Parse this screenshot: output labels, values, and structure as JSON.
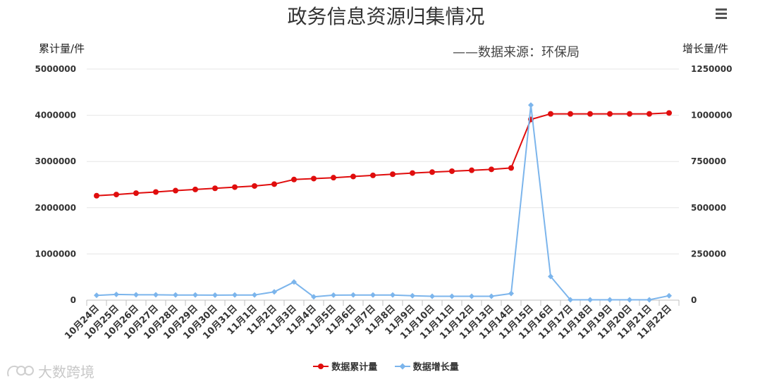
{
  "chart_data": {
    "type": "line",
    "title": "政务信息资源归集情况",
    "subtitle": "——数据来源：环保局",
    "ylabel_left": "累计量/件",
    "ylabel_right": "增长量/件",
    "categories": [
      "10月24日",
      "10月25日",
      "10月26日",
      "10月27日",
      "10月28日",
      "10月29日",
      "10月30日",
      "10月31日",
      "11月1日",
      "11月2日",
      "11月3日",
      "11月4日",
      "11月5日",
      "11月6日",
      "11月7日",
      "11月8日",
      "11月9日",
      "11月10日",
      "11月11日",
      "11月12日",
      "11月13日",
      "11月14日",
      "11月15日",
      "11月16日",
      "11月17日",
      "11月18日",
      "11月19日",
      "11月20日",
      "11月21日",
      "11月22日"
    ],
    "ylim_left": [
      0,
      5000000
    ],
    "ylim_right": [
      0,
      1250000
    ],
    "yticks_left": [
      "0",
      "1000000",
      "2000000",
      "3000000",
      "4000000",
      "5000000"
    ],
    "yticks_right": [
      "0",
      "250000",
      "500000",
      "750000",
      "1000000",
      "1250000"
    ],
    "grid": true,
    "legend_position": "bottom",
    "series": [
      {
        "name": "数据累计量",
        "axis": "left",
        "color": "#e00d0d",
        "marker": "circle",
        "values": [
          2260000,
          2285000,
          2315000,
          2340000,
          2370000,
          2395000,
          2420000,
          2445000,
          2470000,
          2510000,
          2610000,
          2630000,
          2650000,
          2675000,
          2700000,
          2725000,
          2750000,
          2770000,
          2790000,
          2810000,
          2830000,
          2860000,
          3910000,
          4030000,
          4030000,
          4030000,
          4030000,
          4030000,
          4030000,
          4050000
        ]
      },
      {
        "name": "数据增长量",
        "axis": "right",
        "color": "#7cb5ec",
        "marker": "diamond",
        "values": [
          26000,
          31000,
          29000,
          29000,
          28000,
          28000,
          27000,
          28000,
          28000,
          45000,
          98000,
          18000,
          27000,
          28000,
          28000,
          28000,
          24000,
          21000,
          21000,
          21000,
          21000,
          36000,
          1055000,
          128000,
          2000,
          2000,
          2000,
          2000,
          2000,
          24000
        ]
      }
    ]
  },
  "watermark": "大数跨境",
  "icons": {
    "menu": "hamburger-menu-icon"
  }
}
